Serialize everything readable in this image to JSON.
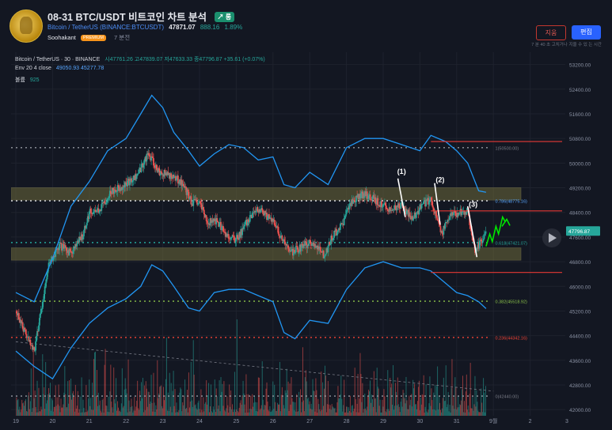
{
  "header": {
    "title": "08-31 BTC/USDT 비트코인 차트 분석",
    "trend_badge": "↗ 롱",
    "symbol_link": "Bitcoin / TetherUS (BINANCE:BTCUSDT)",
    "price": "47871.07",
    "change": "888.16",
    "change_pct": "1.89%",
    "author": "Soohakant",
    "author_badge": "PREMIUM",
    "time_ago": "7 분전",
    "delete_label": "지움",
    "edit_label": "편집",
    "edit_note": "7 분 40 초 고치거나 지울 수 있 는 시간"
  },
  "legend": {
    "line1_symbol": "Bitcoin / TetherUS · 30 · BINANCE",
    "line1_ohlc": "시47761.26  고47839.07  저47633.33  종47796.87  +35.61 (+0.07%)",
    "line2_label": "Env 20 4 close",
    "line2_vals": "49050.93  45277.78",
    "line3_label": "볼륨",
    "line3_val": "925"
  },
  "chart_data": {
    "type": "candlestick",
    "symbol": "BTCUSDT",
    "interval": "30",
    "ylim": [
      41800,
      53600
    ],
    "y_ticks": [
      42000,
      42800,
      43600,
      44400,
      45200,
      46000,
      46800,
      47600,
      48400,
      49200,
      50000,
      50800,
      51600,
      52400,
      53200
    ],
    "y_tick_labels": [
      "42000.00",
      "42800.00",
      "43600.00",
      "44400.00",
      "45200.00",
      "46000.00",
      "46800.00",
      "47600.00",
      "48400.00",
      "49200.00",
      "50000.00",
      "50800.00",
      "51600.00",
      "52400.00",
      "53200.00"
    ],
    "x_labels": [
      "19",
      "20",
      "21",
      "22",
      "23",
      "24",
      "25",
      "26",
      "27",
      "28",
      "29",
      "30",
      "31",
      "9월",
      "2",
      "3"
    ],
    "x_range_days": [
      0,
      15
    ],
    "last_day_index": 12.8,
    "price_path": [
      [
        0,
        45200
      ],
      [
        0.3,
        44400
      ],
      [
        0.5,
        43900
      ],
      [
        0.7,
        45300
      ],
      [
        0.9,
        46700
      ],
      [
        1.2,
        47300
      ],
      [
        1.5,
        47100
      ],
      [
        1.8,
        47600
      ],
      [
        2,
        48400
      ],
      [
        2.3,
        48500
      ],
      [
        2.6,
        49100
      ],
      [
        3,
        49300
      ],
      [
        3.3,
        49600
      ],
      [
        3.6,
        50300
      ],
      [
        3.9,
        49700
      ],
      [
        4.2,
        49600
      ],
      [
        4.5,
        49400
      ],
      [
        4.8,
        48700
      ],
      [
        5,
        48700
      ],
      [
        5.2,
        48100
      ],
      [
        5.5,
        48100
      ],
      [
        5.7,
        47700
      ],
      [
        6,
        47500
      ],
      [
        6.3,
        48100
      ],
      [
        6.6,
        48500
      ],
      [
        7,
        48100
      ],
      [
        7.3,
        47400
      ],
      [
        7.5,
        47100
      ],
      [
        7.8,
        47300
      ],
      [
        8,
        47400
      ],
      [
        8.2,
        47300
      ],
      [
        8.4,
        47000
      ],
      [
        8.6,
        47600
      ],
      [
        8.9,
        48000
      ],
      [
        9.1,
        48700
      ],
      [
        9.4,
        49000
      ],
      [
        9.7,
        48900
      ],
      [
        9.9,
        48700
      ],
      [
        10.2,
        48500
      ],
      [
        10.5,
        48600
      ],
      [
        10.8,
        48200
      ],
      [
        11.1,
        48700
      ],
      [
        11.3,
        48800
      ],
      [
        11.6,
        47700
      ],
      [
        11.8,
        48300
      ],
      [
        12.1,
        48400
      ],
      [
        12.3,
        48400
      ],
      [
        12.5,
        47200
      ],
      [
        12.7,
        47500
      ],
      [
        12.8,
        47797
      ]
    ],
    "envelope_upper": [
      [
        0,
        45800
      ],
      [
        0.5,
        45500
      ],
      [
        1,
        46900
      ],
      [
        1.5,
        48600
      ],
      [
        2,
        49400
      ],
      [
        2.5,
        50400
      ],
      [
        3,
        50800
      ],
      [
        3.4,
        51600
      ],
      [
        3.7,
        52200
      ],
      [
        4,
        51800
      ],
      [
        4.3,
        51000
      ],
      [
        4.7,
        50400
      ],
      [
        5,
        49900
      ],
      [
        5.4,
        50300
      ],
      [
        5.8,
        50600
      ],
      [
        6.2,
        50500
      ],
      [
        6.6,
        50100
      ],
      [
        7,
        50200
      ],
      [
        7.3,
        49300
      ],
      [
        7.6,
        49200
      ],
      [
        8,
        49700
      ],
      [
        8.5,
        49300
      ],
      [
        9,
        50500
      ],
      [
        9.5,
        50800
      ],
      [
        10,
        50800
      ],
      [
        10.5,
        50600
      ],
      [
        11,
        50400
      ],
      [
        11.3,
        50900
      ],
      [
        11.7,
        50700
      ],
      [
        12,
        50400
      ],
      [
        12.3,
        50000
      ],
      [
        12.6,
        49100
      ],
      [
        12.8,
        49051
      ]
    ],
    "envelope_lower": [
      [
        0,
        43900
      ],
      [
        0.5,
        43400
      ],
      [
        1,
        43000
      ],
      [
        1.5,
        44000
      ],
      [
        2,
        44800
      ],
      [
        2.5,
        45300
      ],
      [
        3,
        45600
      ],
      [
        3.4,
        46000
      ],
      [
        3.7,
        46700
      ],
      [
        4,
        46500
      ],
      [
        4.3,
        46000
      ],
      [
        4.7,
        45300
      ],
      [
        5,
        45200
      ],
      [
        5.4,
        45800
      ],
      [
        5.8,
        45900
      ],
      [
        6.2,
        45900
      ],
      [
        6.6,
        45700
      ],
      [
        7,
        45500
      ],
      [
        7.3,
        44500
      ],
      [
        7.6,
        44300
      ],
      [
        8,
        44900
      ],
      [
        8.5,
        44800
      ],
      [
        9,
        45900
      ],
      [
        9.5,
        46600
      ],
      [
        10,
        46800
      ],
      [
        10.5,
        46600
      ],
      [
        11,
        46600
      ],
      [
        11.3,
        46500
      ],
      [
        11.7,
        46100
      ],
      [
        12,
        45800
      ],
      [
        12.3,
        45700
      ],
      [
        12.6,
        45500
      ],
      [
        12.8,
        45278
      ]
    ],
    "fib_levels": [
      {
        "ratio": "1",
        "label": "1(50500.00)",
        "value": 50500,
        "color": "#9598a1",
        "label_color": "#787b86"
      },
      {
        "ratio": "0.786",
        "label": "0.786(48775.16)",
        "value": 48775.16,
        "color": "#e6e8ee",
        "label_color": "#58a6ff"
      },
      {
        "ratio": "0.618",
        "label": "0.618(47421.07)",
        "value": 47421.07,
        "color": "#26a69a",
        "label_color": "#26a69a"
      },
      {
        "ratio": "0.382",
        "label": "0.382(45518.92)",
        "value": 45518.92,
        "color": "#8bc34a",
        "label_color": "#8bc34a"
      },
      {
        "ratio": "0.236",
        "label": "0.236(44342.16)",
        "value": 44342.16,
        "color": "#f44336",
        "label_color": "#f44336"
      },
      {
        "ratio": "0",
        "label": "0(42440.00)",
        "value": 42440,
        "color": "#9598a1",
        "label_color": "#787b86"
      }
    ],
    "zones": [
      {
        "from": 48800,
        "to": 49200
      },
      {
        "from": 46850,
        "to": 47250
      }
    ],
    "sr_lines": [
      {
        "label": "(R1",
        "value": 50700,
        "from_day": 11.3
      },
      {
        "label": "(P",
        "value": 48450,
        "from_day": 11.3
      },
      {
        "label": "(S1",
        "value": 46450,
        "from_day": 11.3
      }
    ],
    "wave_labels": [
      {
        "label": "(1)",
        "day": 10.5,
        "value": 49650,
        "line_from": [
          10.4,
          49500
        ],
        "line_to": [
          10.6,
          48250
        ]
      },
      {
        "label": "(2)",
        "day": 11.55,
        "value": 49380,
        "line_from": [
          11.4,
          49350
        ],
        "line_to": [
          11.55,
          48000
        ]
      },
      {
        "label": "(3)",
        "day": 12.45,
        "value": 48580,
        "line_from": [
          12.3,
          48600
        ],
        "line_to": [
          12.55,
          46950
        ]
      }
    ],
    "last_price_label": "47796.87",
    "trendline": {
      "from": [
        0,
        44200
      ],
      "to": [
        13,
        42600
      ]
    },
    "volume_ylim": [
      0,
      100
    ]
  }
}
